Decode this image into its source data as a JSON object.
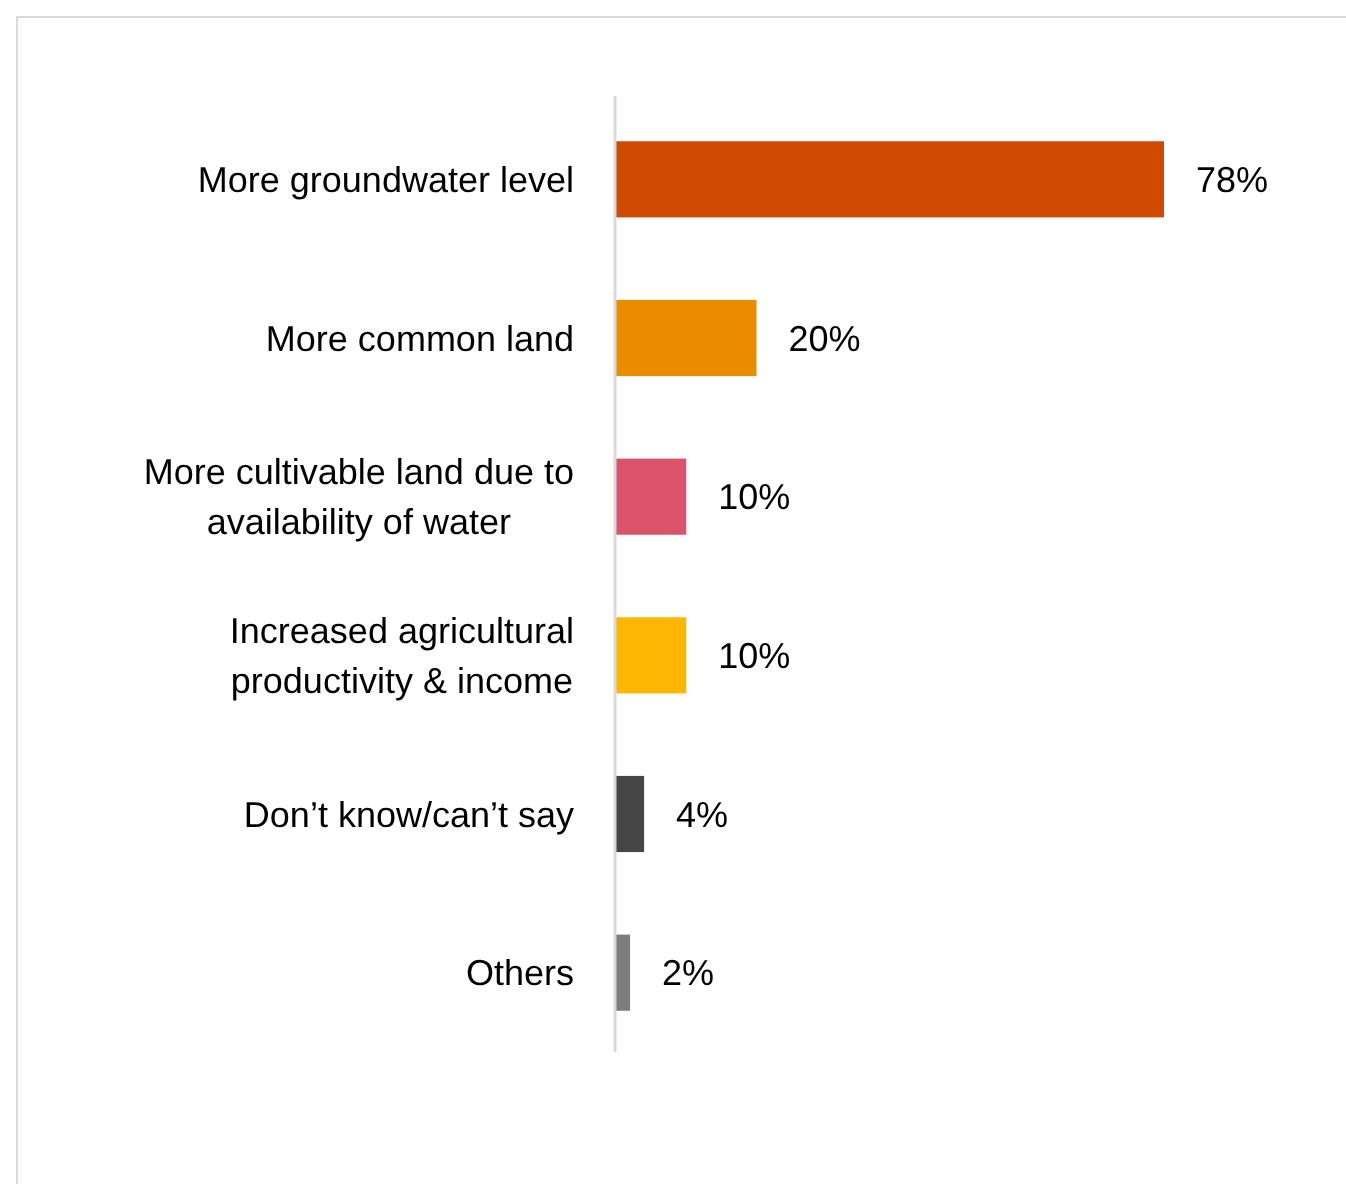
{
  "chart_data": {
    "type": "bar",
    "orientation": "horizontal",
    "categories": [
      "More groundwater level",
      "More common land",
      "More cultivable land due to availability of water",
      "Increased agricultural productivity & income",
      "Don’t know/can’t say",
      "Others"
    ],
    "values": [
      78,
      20,
      10,
      10,
      4,
      2
    ],
    "colors": [
      "#d04a02",
      "#eb8c00",
      "#db536a",
      "#ffb600",
      "#464646",
      "#7d7d7d"
    ],
    "value_labels": [
      "78%",
      "20%",
      "10%",
      "10%",
      "4%",
      "2%"
    ]
  }
}
